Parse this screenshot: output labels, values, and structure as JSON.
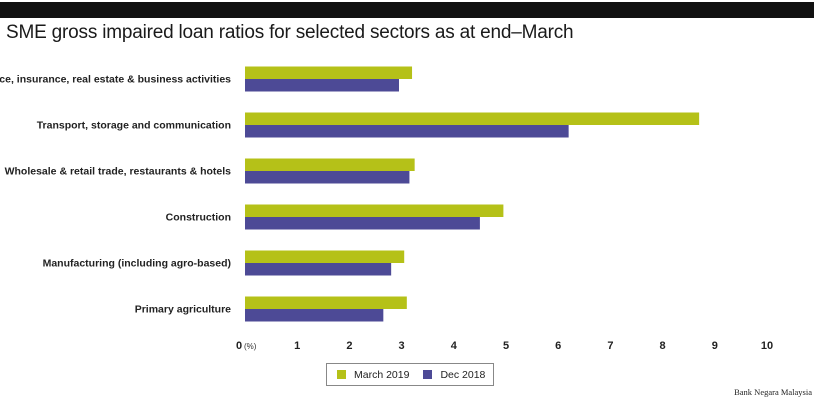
{
  "title": "SME gross impaired loan ratios for selected sectors as at end–March",
  "source": "Bank Negara Malaysia",
  "colors": {
    "march_2019": "#b5c118",
    "dec_2018": "#4d4a96",
    "topbar": "#111111"
  },
  "chart_data": {
    "type": "bar",
    "orientation": "horizontal",
    "categories": [
      "Finance, insurance, real estate & business activities",
      "Transport, storage and communication",
      "Wholesale & retail trade, restaurants & hotels",
      "Construction",
      "Manufacturing (including agro-based)",
      "Primary agriculture"
    ],
    "series": [
      {
        "name": "March 2019",
        "values": [
          3.2,
          8.7,
          3.25,
          4.95,
          3.05,
          3.1
        ]
      },
      {
        "name": "Dec 2018",
        "values": [
          2.95,
          6.2,
          3.15,
          4.5,
          2.8,
          2.65
        ]
      }
    ],
    "xlim": [
      0,
      10
    ],
    "xticks": [
      "0",
      "1",
      "2",
      "3",
      "4",
      "5",
      "6",
      "7",
      "8",
      "9",
      "10"
    ],
    "xunit": "(%)",
    "grid": false,
    "legend_position": "bottom-center"
  }
}
